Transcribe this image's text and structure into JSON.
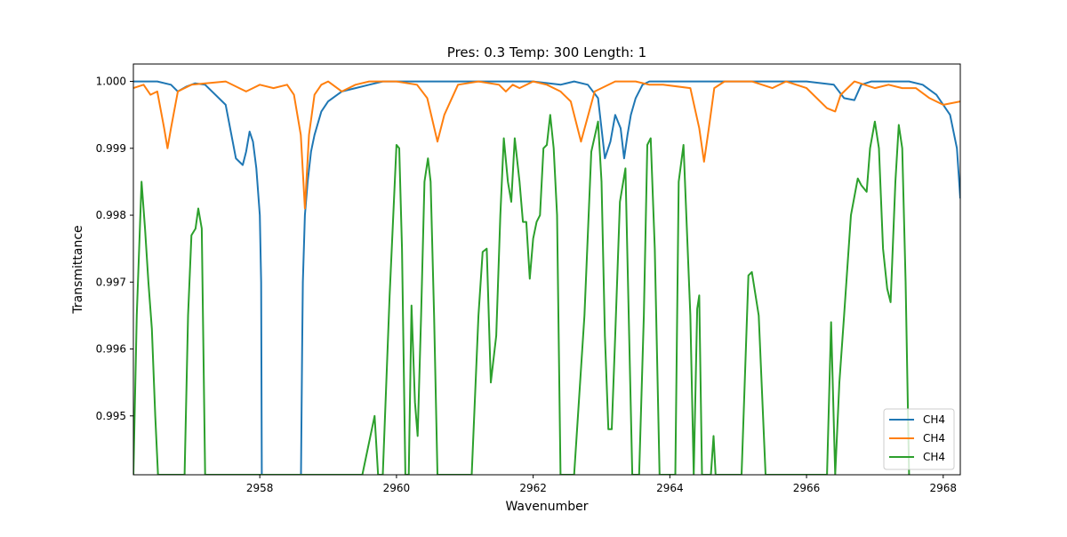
{
  "chart_data": {
    "type": "line",
    "title": "Pres: 0.3 Temp: 300 Length: 1",
    "xlabel": "Wavenumber",
    "ylabel": "Transmittance",
    "xlim": [
      2956.15,
      2968.25
    ],
    "ylim": [
      0.99412,
      1.00026
    ],
    "xticks": [
      2958,
      2960,
      2962,
      2964,
      2966,
      2968
    ],
    "xtick_labels": [
      "2958",
      "2960",
      "2962",
      "2964",
      "2966",
      "2968"
    ],
    "yticks": [
      0.995,
      0.996,
      0.997,
      0.998,
      0.999,
      1.0
    ],
    "ytick_labels": [
      "0.995",
      "0.996",
      "0.997",
      "0.998",
      "0.999",
      "1.000"
    ],
    "grid": false,
    "legend": {
      "position": "lower right",
      "entries": [
        "CH4",
        "CH4",
        "CH4"
      ]
    },
    "series": [
      {
        "name": "CH4",
        "color": "#1f77b4",
        "x": [
          2956.15,
          2956.5,
          2956.7,
          2956.8,
          2956.92,
          2957.05,
          2957.2,
          2957.5,
          2957.65,
          2957.75,
          2957.8,
          2957.85,
          2957.9,
          2957.95,
          2958.0,
          2958.02,
          2958.03,
          2958.6,
          2958.62,
          2958.63,
          2958.66,
          2958.7,
          2958.75,
          2958.8,
          2958.9,
          2959.0,
          2959.2,
          2959.4,
          2959.6,
          2959.8,
          2960.2,
          2961.0,
          2962.0,
          2962.4,
          2962.6,
          2962.8,
          2962.95,
          2963.05,
          2963.13,
          2963.2,
          2963.28,
          2963.33,
          2963.38,
          2963.43,
          2963.5,
          2963.6,
          2963.7,
          2963.9,
          2964.4,
          2965.0,
          2965.5,
          2966.0,
          2966.4,
          2966.55,
          2966.7,
          2966.8,
          2966.95,
          2967.2,
          2967.5,
          2967.7,
          2967.9,
          2968.1,
          2968.2,
          2968.25
        ],
        "y": [
          1.0,
          1.0,
          0.99995,
          0.99985,
          0.99992,
          0.99997,
          0.99995,
          0.99965,
          0.99885,
          0.99875,
          0.99895,
          0.99925,
          0.9991,
          0.9987,
          0.998,
          0.997,
          0.993,
          0.993,
          0.996,
          0.997,
          0.998,
          0.9985,
          0.99895,
          0.9992,
          0.99955,
          0.9997,
          0.99985,
          0.9999,
          0.99995,
          1.0,
          1.0,
          1.0,
          1.0,
          0.99995,
          1.0,
          0.99995,
          0.99975,
          0.99885,
          0.9991,
          0.9995,
          0.9993,
          0.99885,
          0.9992,
          0.9995,
          0.99975,
          0.99995,
          1.0,
          1.0,
          1.0,
          1.0,
          1.0,
          1.0,
          0.99995,
          0.99975,
          0.99972,
          0.99995,
          1.0,
          1.0,
          1.0,
          0.99995,
          0.9998,
          0.9995,
          0.999,
          0.99825
        ]
      },
      {
        "name": "CH4",
        "color": "#ff7f0e",
        "x": [
          2956.15,
          2956.3,
          2956.4,
          2956.5,
          2956.6,
          2956.65,
          2956.7,
          2956.8,
          2957.0,
          2957.5,
          2957.7,
          2957.8,
          2957.9,
          2958.0,
          2958.2,
          2958.4,
          2958.5,
          2958.6,
          2958.66,
          2958.72,
          2958.8,
          2958.9,
          2959.0,
          2959.2,
          2959.4,
          2959.6,
          2960.0,
          2960.3,
          2960.45,
          2960.6,
          2960.7,
          2960.9,
          2961.2,
          2961.5,
          2961.6,
          2961.7,
          2961.8,
          2962.0,
          2962.2,
          2962.4,
          2962.55,
          2962.7,
          2962.9,
          2963.2,
          2963.5,
          2963.7,
          2963.9,
          2964.3,
          2964.43,
          2964.5,
          2964.57,
          2964.65,
          2964.8,
          2965.2,
          2965.5,
          2965.7,
          2966.0,
          2966.3,
          2966.42,
          2966.5,
          2966.7,
          2967.0,
          2967.2,
          2967.4,
          2967.6,
          2967.8,
          2968.0,
          2968.25
        ],
        "y": [
          0.9999,
          0.99995,
          0.9998,
          0.99985,
          0.9993,
          0.999,
          0.9993,
          0.99985,
          0.99995,
          1.0,
          0.9999,
          0.99985,
          0.9999,
          0.99995,
          0.9999,
          0.99995,
          0.9998,
          0.9992,
          0.9981,
          0.9992,
          0.9998,
          0.99995,
          1.0,
          0.99985,
          0.99995,
          1.0,
          1.0,
          0.99995,
          0.99975,
          0.9991,
          0.9995,
          0.99995,
          1.0,
          0.99995,
          0.99985,
          0.99995,
          0.9999,
          1.0,
          0.99995,
          0.99985,
          0.9997,
          0.9991,
          0.99985,
          1.0,
          1.0,
          0.99995,
          0.99995,
          0.9999,
          0.9993,
          0.9988,
          0.9993,
          0.9999,
          1.0,
          1.0,
          0.9999,
          1.0,
          0.9999,
          0.9996,
          0.99955,
          0.9998,
          1.0,
          0.9999,
          0.99995,
          0.9999,
          0.9999,
          0.99975,
          0.99965,
          0.9997
        ]
      },
      {
        "name": "CH4",
        "color": "#2ca02c",
        "x": [
          2956.15,
          2956.2,
          2956.27,
          2956.32,
          2956.37,
          2956.42,
          2956.47,
          2956.51,
          2956.6,
          2956.9,
          2956.95,
          2957.0,
          2957.06,
          2957.1,
          2957.15,
          2957.2,
          2959.5,
          2959.68,
          2959.73,
          2959.8,
          2959.9,
          2960.0,
          2960.04,
          2960.08,
          2960.13,
          2960.18,
          2960.22,
          2960.27,
          2960.31,
          2960.36,
          2960.41,
          2960.46,
          2960.5,
          2960.55,
          2960.6,
          2960.7,
          2961.1,
          2961.2,
          2961.26,
          2961.32,
          2961.38,
          2961.46,
          2961.52,
          2961.57,
          2961.63,
          2961.68,
          2961.73,
          2961.8,
          2961.85,
          2961.9,
          2961.95,
          2962.0,
          2962.05,
          2962.1,
          2962.15,
          2962.2,
          2962.25,
          2962.3,
          2962.35,
          2962.4,
          2962.46,
          2962.6,
          2962.75,
          2962.85,
          2962.95,
          2963.0,
          2963.05,
          2963.1,
          2963.15,
          2963.2,
          2963.27,
          2963.35,
          2963.45,
          2963.55,
          2963.62,
          2963.67,
          2963.72,
          2963.78,
          2963.85,
          2964.0,
          2964.08,
          2964.13,
          2964.2,
          2964.3,
          2964.35,
          2964.4,
          2964.43,
          2964.47,
          2964.5,
          2964.55,
          2964.6,
          2964.64,
          2964.67,
          2964.7,
          2965.05,
          2965.15,
          2965.2,
          2965.3,
          2965.4,
          2966.3,
          2966.36,
          2966.42,
          2966.48,
          2966.55,
          2966.65,
          2966.75,
          2966.8,
          2966.88,
          2966.93,
          2967.0,
          2967.06,
          2967.12,
          2967.18,
          2967.23,
          2967.3,
          2967.35,
          2967.4,
          2967.45,
          2967.5
        ],
        "y": [
          0.99412,
          0.9965,
          0.9985,
          0.9978,
          0.997,
          0.9963,
          0.995,
          0.99412,
          0.99412,
          0.99412,
          0.9965,
          0.9977,
          0.9978,
          0.9981,
          0.9978,
          0.99412,
          0.99412,
          0.995,
          0.99412,
          0.99412,
          0.9968,
          0.99905,
          0.999,
          0.9975,
          0.99412,
          0.99412,
          0.99665,
          0.9952,
          0.9947,
          0.9965,
          0.9985,
          0.99885,
          0.9985,
          0.9965,
          0.99412,
          0.99412,
          0.99412,
          0.9965,
          0.99745,
          0.9975,
          0.9955,
          0.9962,
          0.998,
          0.99915,
          0.9985,
          0.9982,
          0.99915,
          0.9985,
          0.9979,
          0.9979,
          0.99705,
          0.99765,
          0.9979,
          0.998,
          0.999,
          0.99905,
          0.9995,
          0.999,
          0.998,
          0.99412,
          0.99412,
          0.99412,
          0.9965,
          0.99895,
          0.9994,
          0.9985,
          0.9962,
          0.9948,
          0.9948,
          0.9962,
          0.9982,
          0.9987,
          0.99412,
          0.99412,
          0.9965,
          0.99905,
          0.99915,
          0.9975,
          0.99412,
          0.99412,
          0.99412,
          0.9985,
          0.99905,
          0.9965,
          0.99412,
          0.9966,
          0.9968,
          0.99412,
          0.99412,
          0.99412,
          0.99412,
          0.9947,
          0.99412,
          0.99412,
          0.99412,
          0.9971,
          0.99715,
          0.9965,
          0.99412,
          0.99412,
          0.9964,
          0.99412,
          0.9955,
          0.9965,
          0.998,
          0.99855,
          0.99845,
          0.99835,
          0.999,
          0.9994,
          0.999,
          0.9975,
          0.9969,
          0.9967,
          0.9985,
          0.99935,
          0.999,
          0.997,
          0.99412
        ]
      }
    ]
  }
}
